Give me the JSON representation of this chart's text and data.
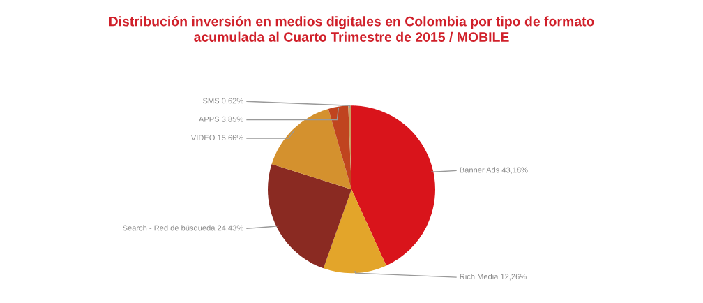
{
  "chart_data": {
    "type": "pie",
    "title": "Distribución inversión en medios digitales en Colombia por tipo de formato\nacumulada al Cuarto Trimestre de 2015 / MOBILE",
    "categories": [
      "Banner Ads",
      "Rich Media",
      "Search - Red de búsqueda",
      "VIDEO",
      "APPS",
      "SMS"
    ],
    "values": [
      43.18,
      12.26,
      24.43,
      15.66,
      3.85,
      0.62
    ],
    "value_labels": [
      "43,18%",
      "12,26%",
      "24,43%",
      "15,66%",
      "3,85%",
      "0,62%"
    ],
    "colors": [
      "#d9141b",
      "#e3a52a",
      "#8a2a22",
      "#d4912e",
      "#c0441f",
      "#c8a060"
    ]
  }
}
